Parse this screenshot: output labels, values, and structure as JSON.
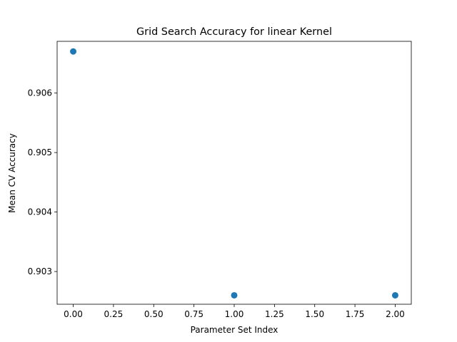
{
  "chart_data": {
    "type": "scatter",
    "title": "Grid Search Accuracy for linear Kernel",
    "xlabel": "Parameter Set Index",
    "ylabel": "Mean CV Accuracy",
    "x": [
      0,
      1,
      2
    ],
    "y": [
      0.9067,
      0.9026,
      0.9026
    ],
    "xlim": [
      -0.1,
      2.1
    ],
    "ylim": [
      0.90245,
      0.90687
    ],
    "xticks": [
      0.0,
      0.25,
      0.5,
      0.75,
      1.0,
      1.25,
      1.5,
      1.75,
      2.0
    ],
    "xtick_labels": [
      "0.00",
      "0.25",
      "0.50",
      "0.75",
      "1.00",
      "1.25",
      "1.50",
      "1.75",
      "2.00"
    ],
    "yticks": [
      0.903,
      0.904,
      0.905,
      0.906
    ],
    "ytick_labels": [
      "0.903",
      "0.904",
      "0.905",
      "0.906"
    ],
    "marker_color": "#1f77b4",
    "grid": false,
    "legend": "none"
  }
}
